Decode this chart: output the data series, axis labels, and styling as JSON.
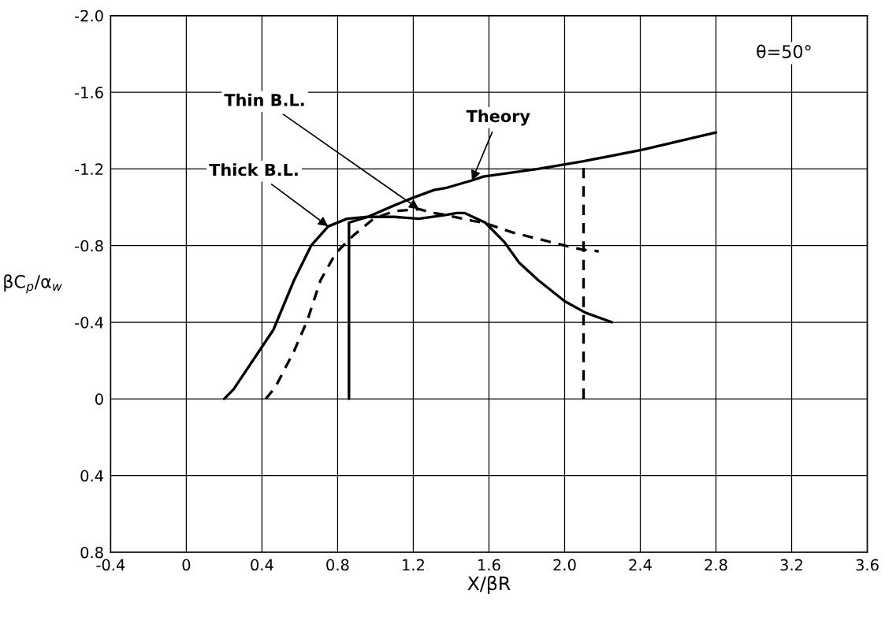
{
  "chart_data": {
    "type": "line",
    "xlabel": "X/βR",
    "ylabel": "βC$_{p}$/α$_{w}$",
    "xlim": [
      -0.4,
      3.6
    ],
    "ylim": [
      0.8,
      -2.0
    ],
    "xticks": [
      -0.4,
      0,
      0.4,
      0.8,
      1.2,
      1.6,
      {
        "value": 2,
        "label": "2.0"
      },
      2.4,
      2.8,
      3.2,
      3.6
    ],
    "yticks": [
      {
        "value": -2,
        "label": "-2.0"
      },
      -1.6,
      -1.2,
      -0.8,
      -0.4,
      0,
      0.4,
      0.8
    ],
    "grid": true,
    "annotations": [
      "θ=50°"
    ],
    "series": [
      {
        "name": "Thin B.L.",
        "color": "#000000",
        "line_style": "dashed",
        "x": [
          0.42,
          0.47,
          0.57,
          0.64,
          0.71,
          0.79,
          0.88,
          0.99,
          1.1,
          1.23,
          1.31,
          1.37,
          1.51,
          1.57,
          1.72,
          2.0,
          2.09,
          2.18
        ],
        "values": [
          0,
          -0.06,
          -0.25,
          -0.41,
          -0.62,
          -0.76,
          -0.85,
          -0.94,
          -0.98,
          -0.99,
          -0.97,
          -0.96,
          -0.93,
          -0.92,
          -0.87,
          -0.8,
          -0.78,
          -0.77
        ]
      },
      {
        "name": "Theory",
        "color": "#000000",
        "line_style": "solid",
        "x": [
          0.86,
          0.86,
          0.96,
          1.1,
          1.2,
          1.31,
          1.37,
          1.51,
          1.57,
          1.86,
          2.1,
          2.41,
          2.8
        ],
        "values": [
          0,
          -0.92,
          -0.95,
          -1.01,
          -1.05,
          -1.09,
          -1.1,
          -1.14,
          -1.16,
          -1.2,
          -1.24,
          -1.3,
          -1.39
        ]
      },
      {
        "name": "Thick B.L.",
        "color": "#000000",
        "line_style": "solid",
        "x": [
          0.2,
          0.25,
          0.46,
          0.57,
          0.66,
          0.75,
          0.85,
          0.96,
          1.1,
          1.23,
          1.37,
          1.43,
          1.47,
          1.58,
          1.68,
          1.76,
          1.86,
          2.0,
          2.11,
          2.25
        ],
        "values": [
          0,
          -0.05,
          -0.36,
          -0.62,
          -0.8,
          -0.9,
          -0.94,
          -0.95,
          -0.95,
          -0.94,
          -0.96,
          -0.97,
          -0.97,
          -0.92,
          -0.82,
          -0.71,
          -0.62,
          -0.51,
          -0.45,
          -0.4
        ]
      },
      {
        "color": "#000000",
        "line_style": "dashed",
        "x": [
          2.1,
          2.1
        ],
        "values": [
          0,
          -1.24
        ]
      }
    ]
  }
}
